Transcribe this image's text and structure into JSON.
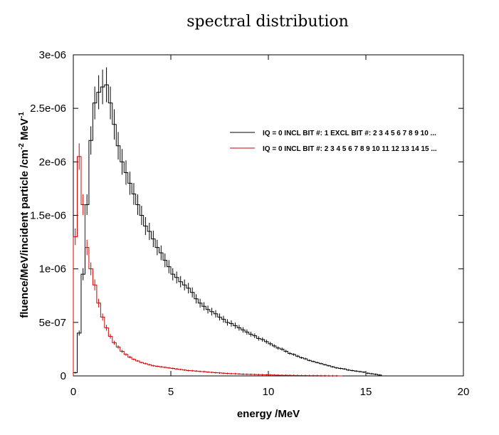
{
  "chart_data": {
    "type": "line",
    "step": true,
    "title": "spectral distribution",
    "xlabel": "energy /MeV",
    "ylabel": "fluence/MeV/incident particle /cm",
    "ylabel_sup1": "-2",
    "ylabel_mid": " MeV",
    "ylabel_sup2": "-1",
    "xlim": [
      0,
      20
    ],
    "ylim": [
      0,
      3e-06
    ],
    "xticks": [
      0,
      5,
      10,
      15,
      20
    ],
    "xtick_labels": [
      "0",
      "5",
      "10",
      "15",
      "20"
    ],
    "yticks": [
      0,
      5e-07,
      1e-06,
      1.5e-06,
      2e-06,
      2.5e-06,
      3e-06
    ],
    "ytick_labels": [
      "0",
      "5e-07",
      "1e-06",
      "1.5e-06",
      "2e-06",
      "2.5e-06",
      "3e-06"
    ],
    "grid": false,
    "legend_position": "top-right",
    "series": [
      {
        "name": "IQ = 0 INCL BIT #:  1 EXCL BIT #:  2  3  4  5  6  7  8  9 10 ...",
        "color": "#000000",
        "x": [
          0.2,
          0.4,
          0.6,
          0.8,
          1.0,
          1.2,
          1.4,
          1.6,
          1.8,
          2.0,
          2.2,
          2.4,
          2.6,
          2.8,
          3.0,
          3.2,
          3.4,
          3.6,
          3.8,
          4.0,
          4.2,
          4.4,
          4.6,
          4.8,
          5.0,
          5.2,
          5.4,
          5.6,
          5.8,
          6.0,
          6.2,
          6.4,
          6.6,
          6.8,
          7.0,
          7.2,
          7.4,
          7.6,
          7.8,
          8.0,
          8.2,
          8.4,
          8.6,
          8.8,
          9.0,
          9.2,
          9.4,
          9.6,
          9.8,
          10.0,
          10.2,
          10.4,
          10.6,
          10.8,
          11.0,
          11.2,
          11.4,
          11.6,
          11.8,
          12.0,
          12.2,
          12.4,
          12.6,
          12.8,
          13.0,
          13.2,
          13.4,
          13.6,
          13.8,
          14.0,
          14.2,
          14.4,
          14.6,
          14.8,
          15.0,
          15.2,
          15.4,
          15.6,
          15.8,
          16.0
        ],
        "y": [
          3e-08,
          4e-07,
          9.5e-07,
          1.6e-06,
          2.2e-06,
          2.55e-06,
          2.65e-06,
          2.7e-06,
          2.72e-06,
          2.55e-06,
          2.35e-06,
          2.15e-06,
          2e-06,
          1.9e-06,
          1.8e-06,
          1.7e-06,
          1.6e-06,
          1.5e-06,
          1.4e-06,
          1.35e-06,
          1.28e-06,
          1.2e-06,
          1.15e-06,
          1.08e-06,
          1.02e-06,
          9.5e-07,
          9.2e-07,
          8.8e-07,
          8.5e-07,
          8.2e-07,
          7.8e-07,
          7.2e-07,
          6.8e-07,
          6.5e-07,
          6.2e-07,
          6e-07,
          5.8e-07,
          5.5e-07,
          5.3e-07,
          5e-07,
          4.9e-07,
          4.7e-07,
          4.5e-07,
          4.3e-07,
          4.1e-07,
          3.9e-07,
          3.75e-07,
          3.5e-07,
          3.4e-07,
          3.2e-07,
          3e-07,
          2.8e-07,
          2.6e-07,
          2.5e-07,
          2.3e-07,
          2.1e-07,
          2e-07,
          1.85e-07,
          1.7e-07,
          1.6e-07,
          1.45e-07,
          1.35e-07,
          1.25e-07,
          1.15e-07,
          1.05e-07,
          9.5e-08,
          8.5e-08,
          7.5e-08,
          7e-08,
          6.5e-08,
          5.5e-08,
          5e-08,
          4.5e-08,
          4e-08,
          3.5e-08,
          2.5e-08,
          2e-08,
          1.5e-08,
          8e-09,
          0
        ]
      },
      {
        "name": "IQ = 0 INCL BIT #: 2 3 4 5 6 7 8 9 10 11 12 13 14 15 ...",
        "color": "#d00000",
        "x": [
          0.2,
          0.4,
          0.6,
          0.8,
          1.0,
          1.2,
          1.4,
          1.6,
          1.8,
          2.0,
          2.2,
          2.4,
          2.6,
          2.8,
          3.0,
          3.2,
          3.4,
          3.6,
          3.8,
          4.0,
          4.2,
          4.4,
          4.6,
          4.8,
          5.0,
          5.2,
          5.4,
          5.6,
          5.8,
          6.0,
          6.2,
          6.4,
          6.6,
          6.8,
          7.0,
          7.2,
          7.4,
          7.6,
          7.8,
          8.0,
          8.2,
          8.4,
          8.6,
          8.8,
          9.0,
          9.2,
          9.4,
          9.6,
          9.8,
          10.0,
          10.2,
          10.4,
          10.6,
          10.8,
          11.0,
          11.2,
          11.4,
          11.6,
          11.8,
          12.0,
          12.2,
          12.4,
          12.6,
          12.8,
          13.0,
          13.2,
          13.4,
          13.6,
          13.8
        ],
        "y": [
          1.3e-06,
          2.05e-06,
          1.6e-06,
          1.2e-06,
          1e-06,
          8.5e-07,
          6.8e-07,
          5.5e-07,
          4.5e-07,
          3.7e-07,
          3.1e-07,
          2.7e-07,
          2.3e-07,
          2e-07,
          1.75e-07,
          1.55e-07,
          1.4e-07,
          1.25e-07,
          1.15e-07,
          1.05e-07,
          9.5e-08,
          9e-08,
          8.5e-08,
          8e-08,
          7.5e-08,
          7e-08,
          6.5e-08,
          6e-08,
          5.5e-08,
          5e-08,
          4.8e-08,
          4.5e-08,
          4.2e-08,
          4e-08,
          3.6e-08,
          3.3e-08,
          3e-08,
          2.8e-08,
          2.5e-08,
          2.3e-08,
          2.1e-08,
          2e-08,
          1.8e-08,
          1.6e-08,
          1.5e-08,
          1.4e-08,
          1.3e-08,
          1.2e-08,
          1.1e-08,
          1e-08,
          9e-09,
          8e-09,
          7e-09,
          6e-09,
          5.5e-09,
          5e-09,
          4.5e-09,
          4e-09,
          3.5e-09,
          3e-09,
          2.7e-09,
          2.4e-09,
          2.1e-09,
          1.8e-09,
          1.5e-09,
          1.2e-09,
          1e-09,
          7e-10,
          0
        ]
      }
    ]
  }
}
